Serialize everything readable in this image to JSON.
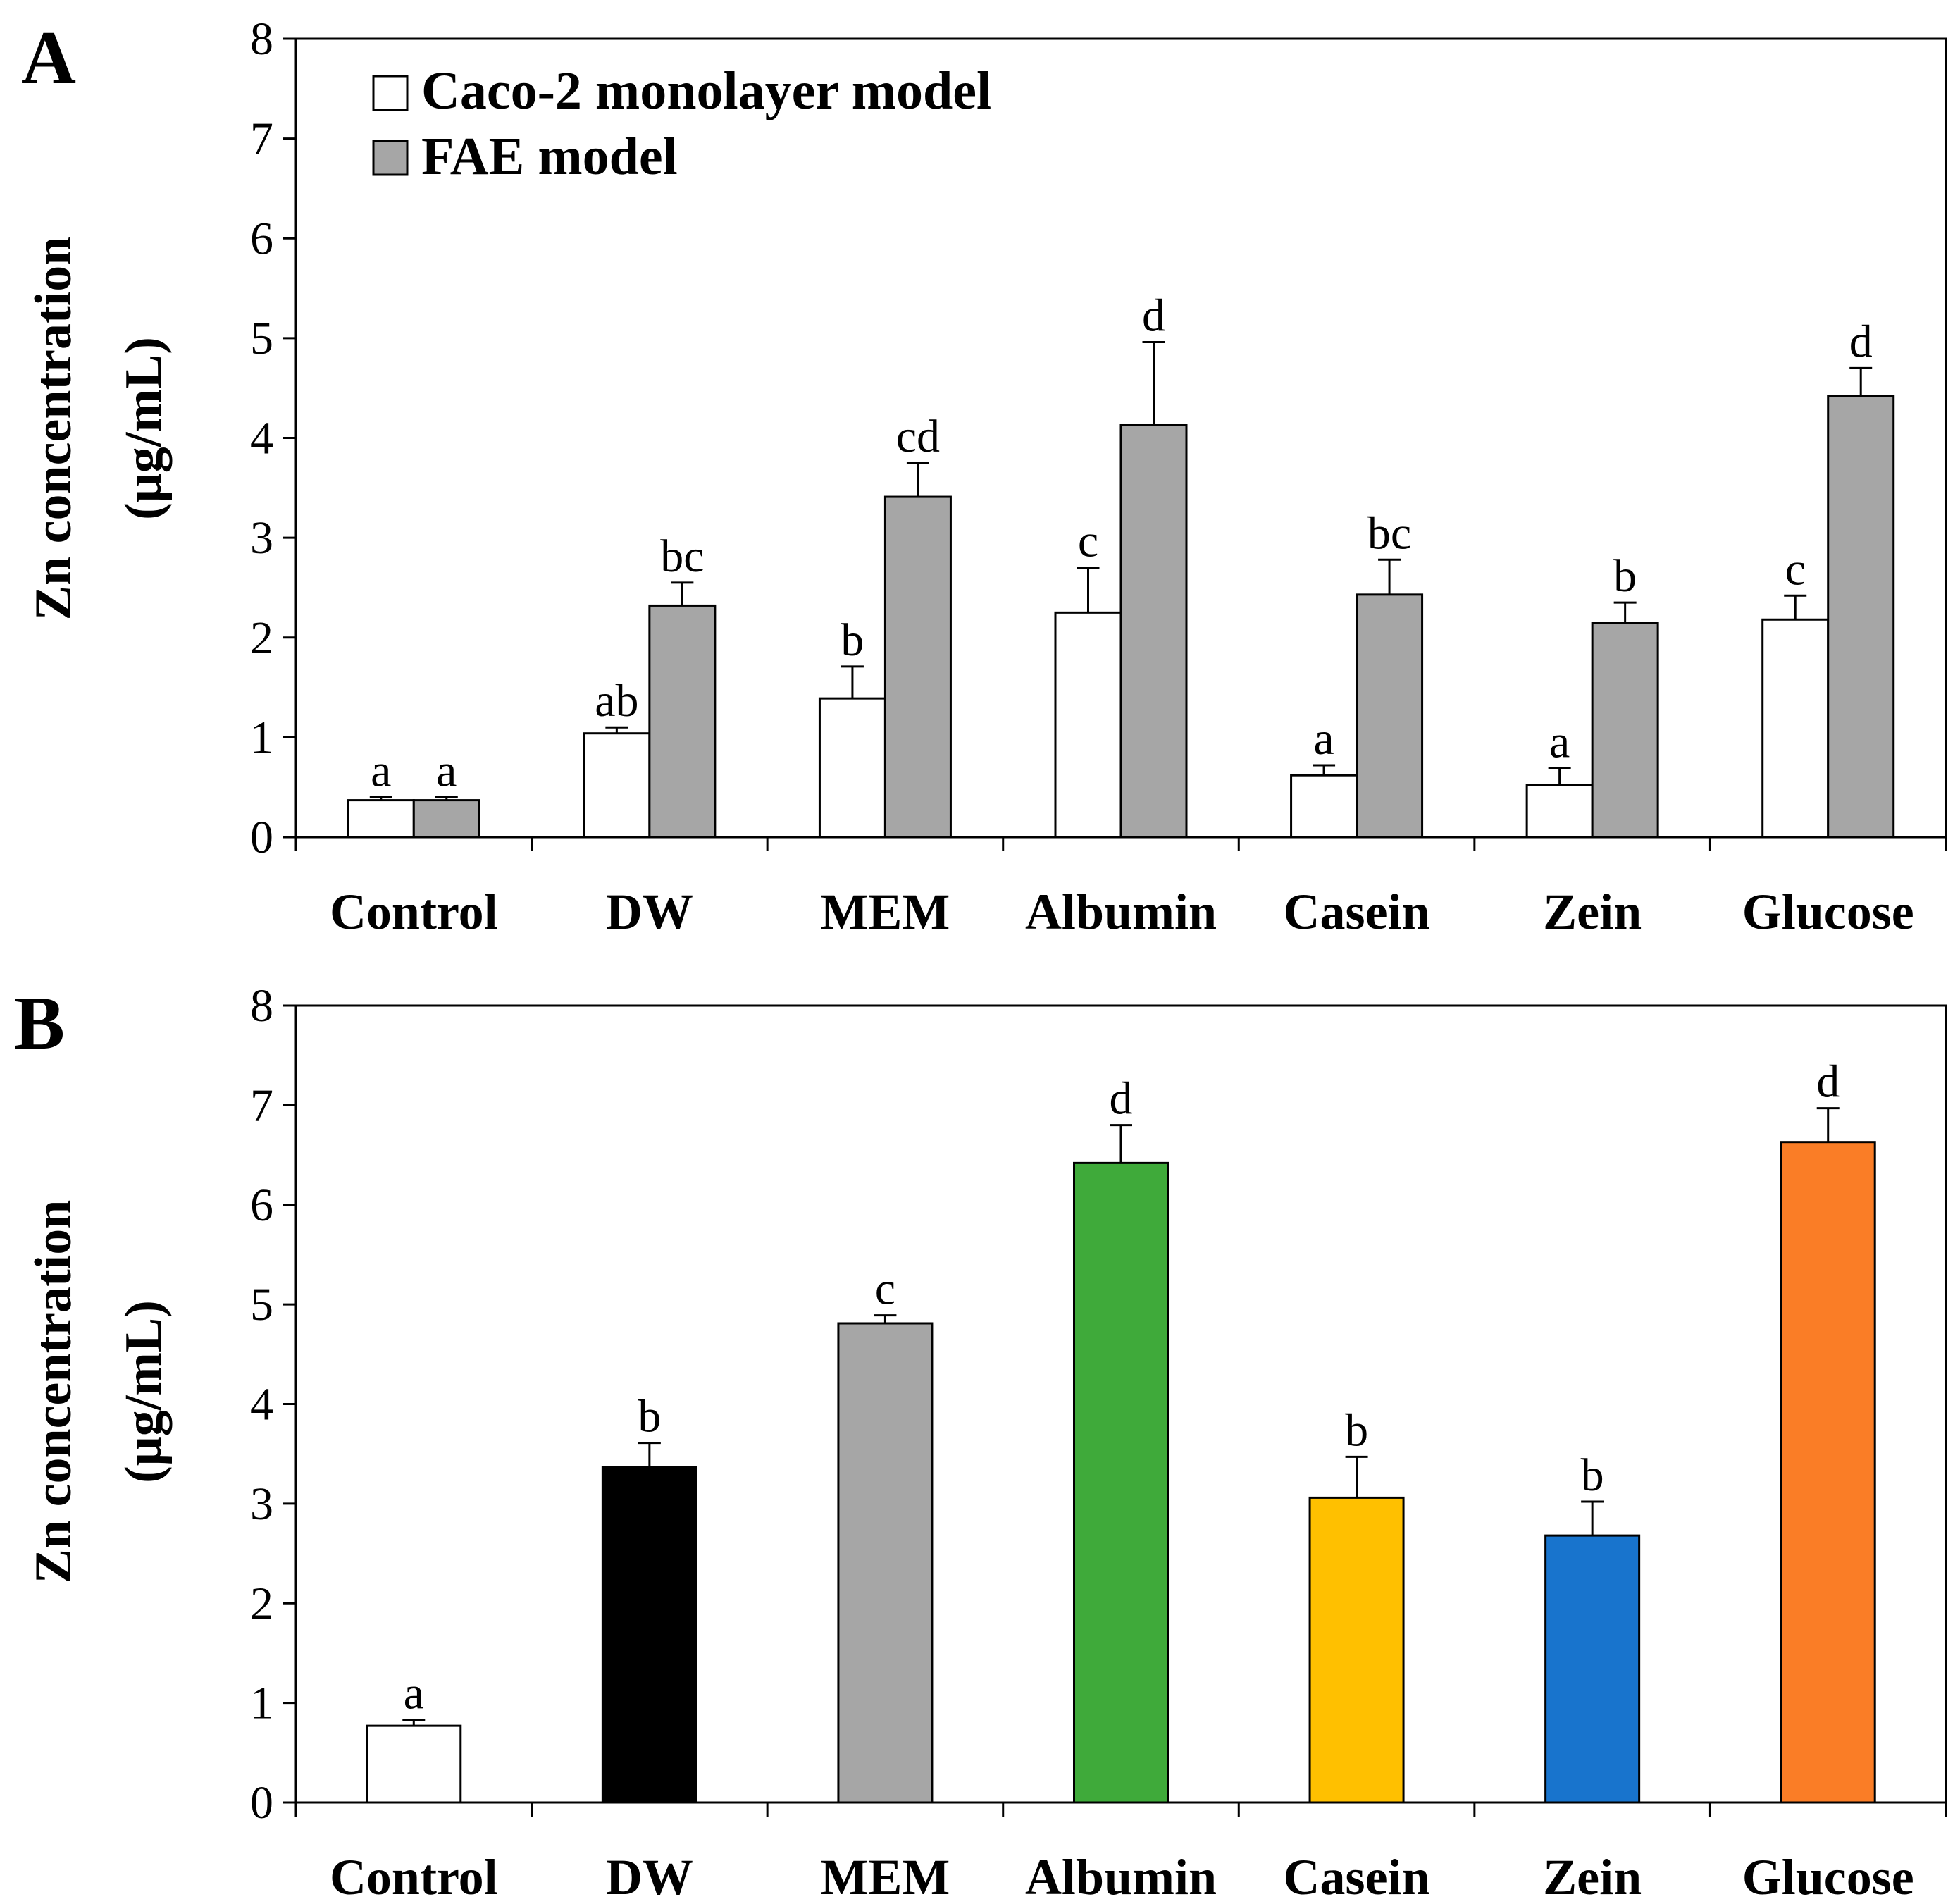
{
  "colors": {
    "caco2": "#ffffff",
    "fae": "#a6a6a6",
    "control": "#ffffff",
    "dw": "#000000",
    "mem": "#a6a6a6",
    "albumin": "#3faa3a",
    "casein": "#ffc000",
    "zein": "#1874cd",
    "glucose": "#fa7d26"
  },
  "chart_data": [
    {
      "type": "bar",
      "panel": "A",
      "ylabel_line1": "Zn concentration",
      "ylabel_line2": "(μg/mL)",
      "ylim": [
        0,
        8
      ],
      "yticks": [
        "0",
        "1",
        "2",
        "3",
        "4",
        "5",
        "6",
        "7",
        "8"
      ],
      "categories": [
        "Control",
        "DW",
        "MEM",
        "Albumin",
        "Casein",
        "Zein",
        "Glucose"
      ],
      "legend_position": "top-left",
      "series": [
        {
          "name": "Caco-2 monolayer model",
          "values": [
            0.37,
            1.04,
            1.39,
            2.25,
            0.62,
            0.52,
            2.18
          ],
          "errors": [
            0.03,
            0.06,
            0.32,
            0.45,
            0.1,
            0.17,
            0.24
          ],
          "letters": [
            "a",
            "ab",
            "b",
            "c",
            "a",
            "a",
            "c"
          ]
        },
        {
          "name": "FAE model",
          "values": [
            0.37,
            2.32,
            3.41,
            4.13,
            2.43,
            2.15,
            4.42
          ],
          "errors": [
            0.03,
            0.23,
            0.34,
            0.83,
            0.35,
            0.2,
            0.28
          ],
          "letters": [
            "a",
            "bc",
            "cd",
            "d",
            "bc",
            "b",
            "d"
          ]
        }
      ]
    },
    {
      "type": "bar",
      "panel": "B",
      "ylabel_line1": "Zn concentration",
      "ylabel_line2": "(μg/mL)",
      "ylim": [
        0,
        8
      ],
      "yticks": [
        "0",
        "1",
        "2",
        "3",
        "4",
        "5",
        "6",
        "7",
        "8"
      ],
      "categories": [
        "Control",
        "DW",
        "MEM",
        "Albumin",
        "Casein",
        "Zein",
        "Glucose"
      ],
      "values": [
        0.77,
        3.37,
        4.81,
        6.42,
        3.06,
        2.68,
        6.63
      ],
      "errors": [
        0.06,
        0.24,
        0.08,
        0.38,
        0.41,
        0.34,
        0.34
      ],
      "letters": [
        "a",
        "b",
        "c",
        "d",
        "b",
        "b",
        "d"
      ],
      "bar_colors": [
        "control",
        "dw",
        "mem",
        "albumin",
        "casein",
        "zein",
        "glucose"
      ]
    }
  ]
}
